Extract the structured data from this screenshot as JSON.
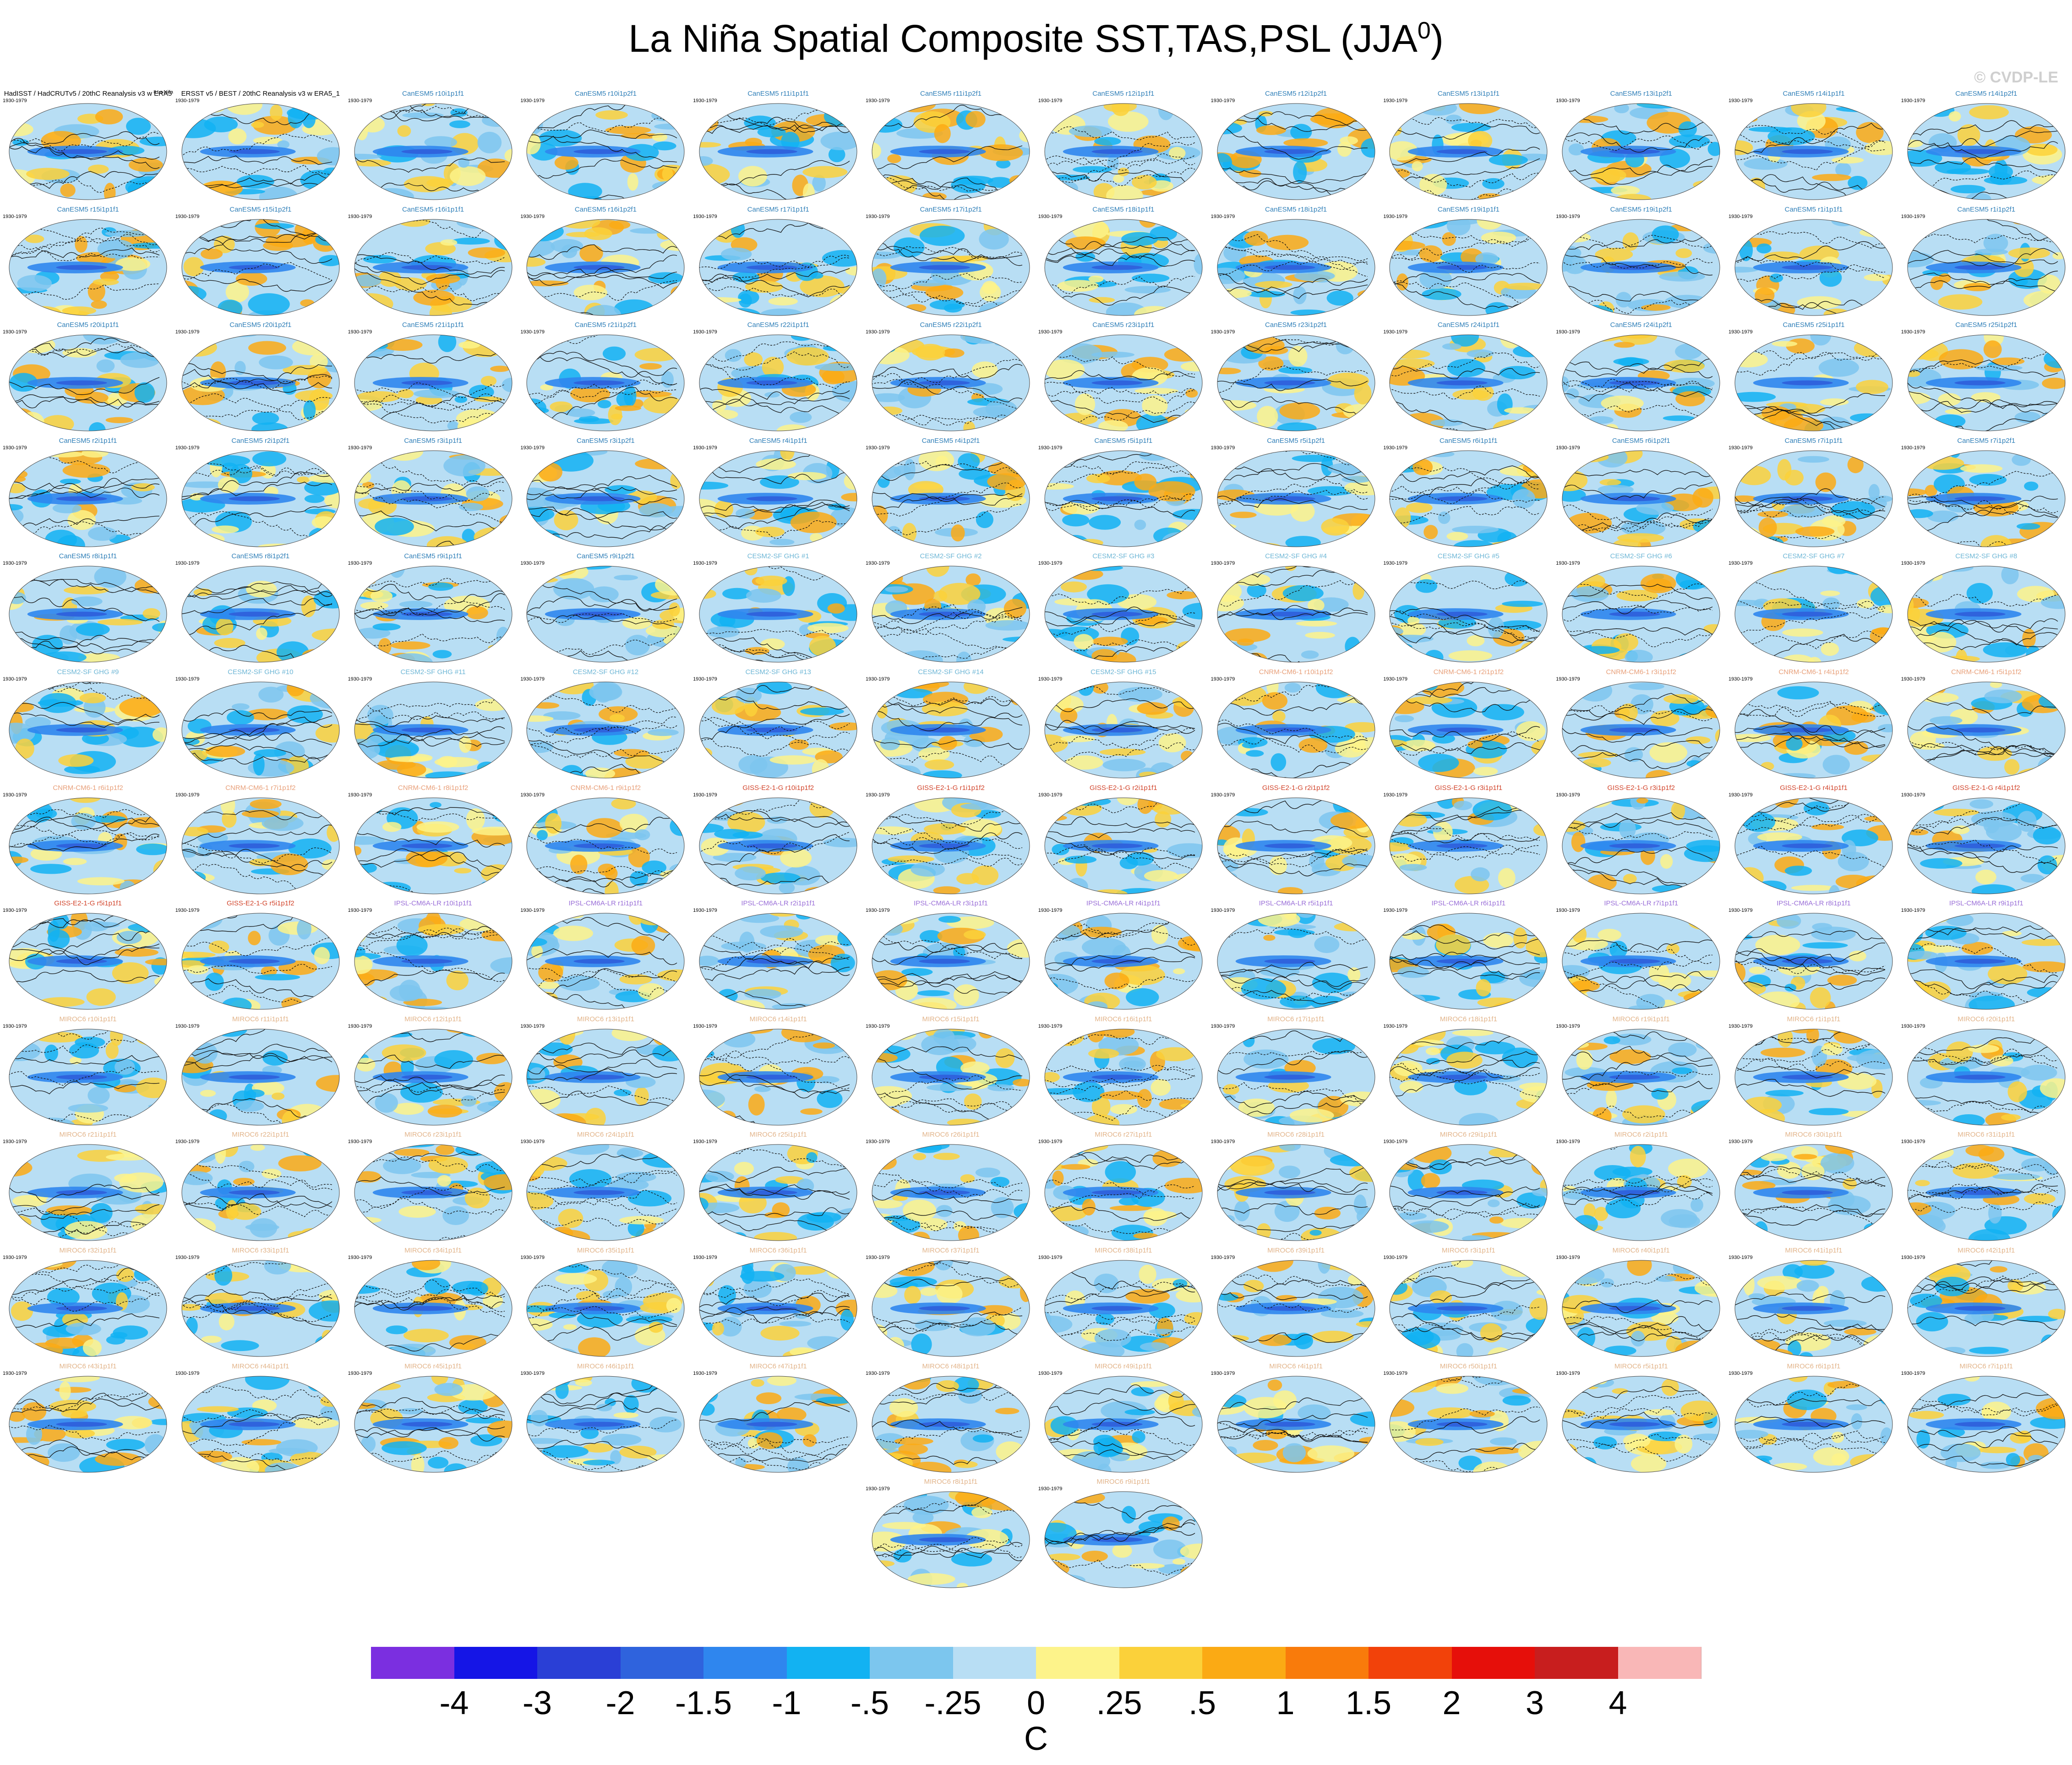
{
  "title": "La Niña Spatial Composite SST,TAS,PSL (JJA",
  "title_superscript": "0",
  "title_close": ")",
  "credit": "© CVDP-LE",
  "years": "1930-1979",
  "panels": [
    {
      "name": "HadISST / HadCRUTv5 / 20thC Reanalysis v3 w ERA5",
      "nino_count": "8 La Niña",
      "color": "#000000"
    },
    {
      "name": "ERSST v5 / BEST / 20thC Reanalysis v3 w ERA5_1",
      "nino_count": "",
      "color": "#000000"
    },
    {
      "name": "CanESM5 r10i1p1f1",
      "nino_count": "",
      "color": "#2f7fb8"
    },
    {
      "name": "CanESM5 r10i1p2f1",
      "nino_count": "",
      "color": "#2f7fb8"
    },
    {
      "name": "CanESM5 r11i1p1f1",
      "nino_count": "",
      "color": "#2f7fb8"
    },
    {
      "name": "CanESM5 r11i1p2f1",
      "nino_count": "",
      "color": "#2f7fb8"
    },
    {
      "name": "CanESM5 r12i1p1f1",
      "nino_count": "",
      "color": "#2f7fb8"
    },
    {
      "name": "CanESM5 r12i1p2f1",
      "nino_count": "",
      "color": "#2f7fb8"
    },
    {
      "name": "CanESM5 r13i1p1f1",
      "nino_count": "",
      "color": "#2f7fb8"
    },
    {
      "name": "CanESM5 r13i1p2f1",
      "nino_count": "",
      "color": "#2f7fb8"
    },
    {
      "name": "CanESM5 r14i1p1f1",
      "nino_count": "",
      "color": "#2f7fb8"
    },
    {
      "name": "CanESM5 r14i1p2f1",
      "nino_count": "",
      "color": "#2f7fb8"
    },
    {
      "name": "CanESM5 r15i1p1f1",
      "nino_count": "",
      "color": "#2f7fb8"
    },
    {
      "name": "CanESM5 r15i1p2f1",
      "nino_count": "",
      "color": "#2f7fb8"
    },
    {
      "name": "CanESM5 r16i1p1f1",
      "nino_count": "",
      "color": "#2f7fb8"
    },
    {
      "name": "CanESM5 r16i1p2f1",
      "nino_count": "",
      "color": "#2f7fb8"
    },
    {
      "name": "CanESM5 r17i1p1f1",
      "nino_count": "",
      "color": "#2f7fb8"
    },
    {
      "name": "CanESM5 r17i1p2f1",
      "nino_count": "",
      "color": "#2f7fb8"
    },
    {
      "name": "CanESM5 r18i1p1f1",
      "nino_count": "",
      "color": "#2f7fb8"
    },
    {
      "name": "CanESM5 r18i1p2f1",
      "nino_count": "",
      "color": "#2f7fb8"
    },
    {
      "name": "CanESM5 r19i1p1f1",
      "nino_count": "",
      "color": "#2f7fb8"
    },
    {
      "name": "CanESM5 r19i1p2f1",
      "nino_count": "",
      "color": "#2f7fb8"
    },
    {
      "name": "CanESM5 r1i1p1f1",
      "nino_count": "",
      "color": "#2f7fb8"
    },
    {
      "name": "CanESM5 r1i1p2f1",
      "nino_count": "",
      "color": "#2f7fb8"
    },
    {
      "name": "CanESM5 r20i1p1f1",
      "nino_count": "",
      "color": "#2f7fb8"
    },
    {
      "name": "CanESM5 r20i1p2f1",
      "nino_count": "",
      "color": "#2f7fb8"
    },
    {
      "name": "CanESM5 r21i1p1f1",
      "nino_count": "",
      "color": "#2f7fb8"
    },
    {
      "name": "CanESM5 r21i1p2f1",
      "nino_count": "",
      "color": "#2f7fb8"
    },
    {
      "name": "CanESM5 r22i1p1f1",
      "nino_count": "",
      "color": "#2f7fb8"
    },
    {
      "name": "CanESM5 r22i1p2f1",
      "nino_count": "",
      "color": "#2f7fb8"
    },
    {
      "name": "CanESM5 r23i1p1f1",
      "nino_count": "",
      "color": "#2f7fb8"
    },
    {
      "name": "CanESM5 r23i1p2f1",
      "nino_count": "",
      "color": "#2f7fb8"
    },
    {
      "name": "CanESM5 r24i1p1f1",
      "nino_count": "",
      "color": "#2f7fb8"
    },
    {
      "name": "CanESM5 r24i1p2f1",
      "nino_count": "",
      "color": "#2f7fb8"
    },
    {
      "name": "CanESM5 r25i1p1f1",
      "nino_count": "",
      "color": "#2f7fb8"
    },
    {
      "name": "CanESM5 r25i1p2f1",
      "nino_count": "",
      "color": "#2f7fb8"
    },
    {
      "name": "CanESM5 r2i1p1f1",
      "nino_count": "",
      "color": "#2f7fb8"
    },
    {
      "name": "CanESM5 r2i1p2f1",
      "nino_count": "",
      "color": "#2f7fb8"
    },
    {
      "name": "CanESM5 r3i1p1f1",
      "nino_count": "",
      "color": "#2f7fb8"
    },
    {
      "name": "CanESM5 r3i1p2f1",
      "nino_count": "",
      "color": "#2f7fb8"
    },
    {
      "name": "CanESM5 r4i1p1f1",
      "nino_count": "",
      "color": "#2f7fb8"
    },
    {
      "name": "CanESM5 r4i1p2f1",
      "nino_count": "",
      "color": "#2f7fb8"
    },
    {
      "name": "CanESM5 r5i1p1f1",
      "nino_count": "",
      "color": "#2f7fb8"
    },
    {
      "name": "CanESM5 r5i1p2f1",
      "nino_count": "",
      "color": "#2f7fb8"
    },
    {
      "name": "CanESM5 r6i1p1f1",
      "nino_count": "",
      "color": "#2f7fb8"
    },
    {
      "name": "CanESM5 r6i1p2f1",
      "nino_count": "",
      "color": "#2f7fb8"
    },
    {
      "name": "CanESM5 r7i1p1f1",
      "nino_count": "",
      "color": "#2f7fb8"
    },
    {
      "name": "CanESM5 r7i1p2f1",
      "nino_count": "",
      "color": "#2f7fb8"
    },
    {
      "name": "CanESM5 r8i1p1f1",
      "nino_count": "",
      "color": "#2f7fb8"
    },
    {
      "name": "CanESM5 r8i1p2f1",
      "nino_count": "",
      "color": "#2f7fb8"
    },
    {
      "name": "CanESM5 r9i1p1f1",
      "nino_count": "",
      "color": "#2f7fb8"
    },
    {
      "name": "CanESM5 r9i1p2f1",
      "nino_count": "",
      "color": "#2f7fb8"
    },
    {
      "name": "CESM2-SF GHG #1",
      "nino_count": "",
      "color": "#6fb7d6"
    },
    {
      "name": "CESM2-SF GHG #2",
      "nino_count": "",
      "color": "#6fb7d6"
    },
    {
      "name": "CESM2-SF GHG #3",
      "nino_count": "",
      "color": "#6fb7d6"
    },
    {
      "name": "CESM2-SF GHG #4",
      "nino_count": "",
      "color": "#6fb7d6"
    },
    {
      "name": "CESM2-SF GHG #5",
      "nino_count": "",
      "color": "#6fb7d6"
    },
    {
      "name": "CESM2-SF GHG #6",
      "nino_count": "",
      "color": "#6fb7d6"
    },
    {
      "name": "CESM2-SF GHG #7",
      "nino_count": "",
      "color": "#6fb7d6"
    },
    {
      "name": "CESM2-SF GHG #8",
      "nino_count": "",
      "color": "#6fb7d6"
    },
    {
      "name": "CESM2-SF GHG #9",
      "nino_count": "",
      "color": "#6fb7d6"
    },
    {
      "name": "CESM2-SF GHG #10",
      "nino_count": "",
      "color": "#6fb7d6"
    },
    {
      "name": "CESM2-SF GHG #11",
      "nino_count": "",
      "color": "#6fb7d6"
    },
    {
      "name": "CESM2-SF GHG #12",
      "nino_count": "",
      "color": "#6fb7d6"
    },
    {
      "name": "CESM2-SF GHG #13",
      "nino_count": "",
      "color": "#6fb7d6"
    },
    {
      "name": "CESM2-SF GHG #14",
      "nino_count": "",
      "color": "#6fb7d6"
    },
    {
      "name": "CESM2-SF GHG #15",
      "nino_count": "",
      "color": "#6fb7d6"
    },
    {
      "name": "CNRM-CM6-1 r10i1p1f2",
      "nino_count": "",
      "color": "#e8a07a"
    },
    {
      "name": "CNRM-CM6-1 r2i1p1f2",
      "nino_count": "",
      "color": "#e8a07a"
    },
    {
      "name": "CNRM-CM6-1 r3i1p1f2",
      "nino_count": "",
      "color": "#e8a07a"
    },
    {
      "name": "CNRM-CM6-1 r4i1p1f2",
      "nino_count": "",
      "color": "#e8a07a"
    },
    {
      "name": "CNRM-CM6-1 r5i1p1f2",
      "nino_count": "",
      "color": "#e8a07a"
    },
    {
      "name": "CNRM-CM6-1 r6i1p1f2",
      "nino_count": "",
      "color": "#e8a07a"
    },
    {
      "name": "CNRM-CM6-1 r7i1p1f2",
      "nino_count": "",
      "color": "#e8a07a"
    },
    {
      "name": "CNRM-CM6-1 r8i1p1f2",
      "nino_count": "",
      "color": "#e8a07a"
    },
    {
      "name": "CNRM-CM6-1 r9i1p1f2",
      "nino_count": "",
      "color": "#e8a07a"
    },
    {
      "name": "GISS-E2-1-G r10i1p1f2",
      "nino_count": "",
      "color": "#d2452c"
    },
    {
      "name": "GISS-E2-1-G r1i1p1f2",
      "nino_count": "",
      "color": "#d2452c"
    },
    {
      "name": "GISS-E2-1-G r2i1p1f1",
      "nino_count": "",
      "color": "#d2452c"
    },
    {
      "name": "GISS-E2-1-G r2i1p1f2",
      "nino_count": "",
      "color": "#d2452c"
    },
    {
      "name": "GISS-E2-1-G r3i1p1f1",
      "nino_count": "",
      "color": "#d2452c"
    },
    {
      "name": "GISS-E2-1-G r3i1p1f2",
      "nino_count": "",
      "color": "#d2452c"
    },
    {
      "name": "GISS-E2-1-G r4i1p1f1",
      "nino_count": "",
      "color": "#d2452c"
    },
    {
      "name": "GISS-E2-1-G r4i1p1f2",
      "nino_count": "",
      "color": "#d2452c"
    },
    {
      "name": "GISS-E2-1-G r5i1p1f1",
      "nino_count": "",
      "color": "#d2452c"
    },
    {
      "name": "GISS-E2-1-G r5i1p1f2",
      "nino_count": "",
      "color": "#d2452c"
    },
    {
      "name": "IPSL-CM6A-LR r10i1p1f1",
      "nino_count": "",
      "color": "#9a6fd8"
    },
    {
      "name": "IPSL-CM6A-LR r1i1p1f1",
      "nino_count": "",
      "color": "#9a6fd8"
    },
    {
      "name": "IPSL-CM6A-LR r2i1p1f1",
      "nino_count": "",
      "color": "#9a6fd8"
    },
    {
      "name": "IPSL-CM6A-LR r3i1p1f1",
      "nino_count": "",
      "color": "#9a6fd8"
    },
    {
      "name": "IPSL-CM6A-LR r4i1p1f1",
      "nino_count": "",
      "color": "#9a6fd8"
    },
    {
      "name": "IPSL-CM6A-LR r5i1p1f1",
      "nino_count": "",
      "color": "#9a6fd8"
    },
    {
      "name": "IPSL-CM6A-LR r6i1p1f1",
      "nino_count": "",
      "color": "#9a6fd8"
    },
    {
      "name": "IPSL-CM6A-LR r7i1p1f1",
      "nino_count": "",
      "color": "#9a6fd8"
    },
    {
      "name": "IPSL-CM6A-LR r8i1p1f1",
      "nino_count": "",
      "color": "#9a6fd8"
    },
    {
      "name": "IPSL-CM6A-LR r9i1p1f1",
      "nino_count": "",
      "color": "#9a6fd8"
    },
    {
      "name": "MIROC6 r10i1p1f1",
      "nino_count": "",
      "color": "#e2b48a"
    },
    {
      "name": "MIROC6 r11i1p1f1",
      "nino_count": "",
      "color": "#e2b48a"
    },
    {
      "name": "MIROC6 r12i1p1f1",
      "nino_count": "",
      "color": "#e2b48a"
    },
    {
      "name": "MIROC6 r13i1p1f1",
      "nino_count": "",
      "color": "#e2b48a"
    },
    {
      "name": "MIROC6 r14i1p1f1",
      "nino_count": "",
      "color": "#e2b48a"
    },
    {
      "name": "MIROC6 r15i1p1f1",
      "nino_count": "",
      "color": "#e2b48a"
    },
    {
      "name": "MIROC6 r16i1p1f1",
      "nino_count": "",
      "color": "#e2b48a"
    },
    {
      "name": "MIROC6 r17i1p1f1",
      "nino_count": "",
      "color": "#e2b48a"
    },
    {
      "name": "MIROC6 r18i1p1f1",
      "nino_count": "",
      "color": "#e2b48a"
    },
    {
      "name": "MIROC6 r19i1p1f1",
      "nino_count": "",
      "color": "#e2b48a"
    },
    {
      "name": "MIROC6 r1i1p1f1",
      "nino_count": "",
      "color": "#e2b48a"
    },
    {
      "name": "MIROC6 r20i1p1f1",
      "nino_count": "",
      "color": "#e2b48a"
    },
    {
      "name": "MIROC6 r21i1p1f1",
      "nino_count": "",
      "color": "#e2b48a"
    },
    {
      "name": "MIROC6 r22i1p1f1",
      "nino_count": "",
      "color": "#e2b48a"
    },
    {
      "name": "MIROC6 r23i1p1f1",
      "nino_count": "",
      "color": "#e2b48a"
    },
    {
      "name": "MIROC6 r24i1p1f1",
      "nino_count": "",
      "color": "#e2b48a"
    },
    {
      "name": "MIROC6 r25i1p1f1",
      "nino_count": "",
      "color": "#e2b48a"
    },
    {
      "name": "MIROC6 r26i1p1f1",
      "nino_count": "",
      "color": "#e2b48a"
    },
    {
      "name": "MIROC6 r27i1p1f1",
      "nino_count": "",
      "color": "#e2b48a"
    },
    {
      "name": "MIROC6 r28i1p1f1",
      "nino_count": "",
      "color": "#e2b48a"
    },
    {
      "name": "MIROC6 r29i1p1f1",
      "nino_count": "",
      "color": "#e2b48a"
    },
    {
      "name": "MIROC6 r2i1p1f1",
      "nino_count": "",
      "color": "#e2b48a"
    },
    {
      "name": "MIROC6 r30i1p1f1",
      "nino_count": "",
      "color": "#e2b48a"
    },
    {
      "name": "MIROC6 r31i1p1f1",
      "nino_count": "",
      "color": "#e2b48a"
    },
    {
      "name": "MIROC6 r32i1p1f1",
      "nino_count": "",
      "color": "#e2b48a"
    },
    {
      "name": "MIROC6 r33i1p1f1",
      "nino_count": "",
      "color": "#e2b48a"
    },
    {
      "name": "MIROC6 r34i1p1f1",
      "nino_count": "",
      "color": "#e2b48a"
    },
    {
      "name": "MIROC6 r35i1p1f1",
      "nino_count": "",
      "color": "#e2b48a"
    },
    {
      "name": "MIROC6 r36i1p1f1",
      "nino_count": "",
      "color": "#e2b48a"
    },
    {
      "name": "MIROC6 r37i1p1f1",
      "nino_count": "",
      "color": "#e2b48a"
    },
    {
      "name": "MIROC6 r38i1p1f1",
      "nino_count": "",
      "color": "#e2b48a"
    },
    {
      "name": "MIROC6 r39i1p1f1",
      "nino_count": "",
      "color": "#e2b48a"
    },
    {
      "name": "MIROC6 r3i1p1f1",
      "nino_count": "",
      "color": "#e2b48a"
    },
    {
      "name": "MIROC6 r40i1p1f1",
      "nino_count": "",
      "color": "#e2b48a"
    },
    {
      "name": "MIROC6 r41i1p1f1",
      "nino_count": "",
      "color": "#e2b48a"
    },
    {
      "name": "MIROC6 r42i1p1f1",
      "nino_count": "",
      "color": "#e2b48a"
    },
    {
      "name": "MIROC6 r43i1p1f1",
      "nino_count": "",
      "color": "#e2b48a"
    },
    {
      "name": "MIROC6 r44i1p1f1",
      "nino_count": "",
      "color": "#e2b48a"
    },
    {
      "name": "MIROC6 r45i1p1f1",
      "nino_count": "",
      "color": "#e2b48a"
    },
    {
      "name": "MIROC6 r46i1p1f1",
      "nino_count": "",
      "color": "#e2b48a"
    },
    {
      "name": "MIROC6 r47i1p1f1",
      "nino_count": "",
      "color": "#e2b48a"
    },
    {
      "name": "MIROC6 r48i1p1f1",
      "nino_count": "",
      "color": "#e2b48a"
    },
    {
      "name": "MIROC6 r49i1p1f1",
      "nino_count": "",
      "color": "#e2b48a"
    },
    {
      "name": "MIROC6 r4i1p1f1",
      "nino_count": "",
      "color": "#e2b48a"
    },
    {
      "name": "MIROC6 r50i1p1f1",
      "nino_count": "",
      "color": "#e2b48a"
    },
    {
      "name": "MIROC6 r5i1p1f1",
      "nino_count": "",
      "color": "#e2b48a"
    },
    {
      "name": "MIROC6 r6i1p1f1",
      "nino_count": "",
      "color": "#e2b48a"
    },
    {
      "name": "MIROC6 r7i1p1f1",
      "nino_count": "",
      "color": "#e2b48a"
    },
    {
      "name": "MIROC6 r8i1p1f1",
      "nino_count": "",
      "color": "#e2b48a"
    },
    {
      "name": "MIROC6 r9i1p1f1",
      "nino_count": "",
      "color": "#e2b48a"
    }
  ],
  "chart_data": {
    "type": "heatmap",
    "title": "La Niña Spatial Composite SST,TAS,PSL (JJA0)",
    "description_fields": [
      "SST",
      "TAS",
      "PSL"
    ],
    "panel_count": 146,
    "colorbar": {
      "units": "C",
      "tick_labels": [
        "-4",
        "-3",
        "-2",
        "-1.5",
        "-1",
        "-.5",
        "-.25",
        "0",
        ".25",
        ".5",
        "1",
        "1.5",
        "2",
        "3",
        "4"
      ],
      "colors": [
        "#7b2fe0",
        "#1515e6",
        "#2a3fd6",
        "#2f63dd",
        "#2f86ee",
        "#12b2f2",
        "#7cc6ee",
        "#b8def4",
        "#fdf38a",
        "#fbd13a",
        "#fbaa14",
        "#f97b0b",
        "#f2420a",
        "#e60f0a",
        "#c81e1e",
        "#f9b7b7"
      ]
    }
  }
}
